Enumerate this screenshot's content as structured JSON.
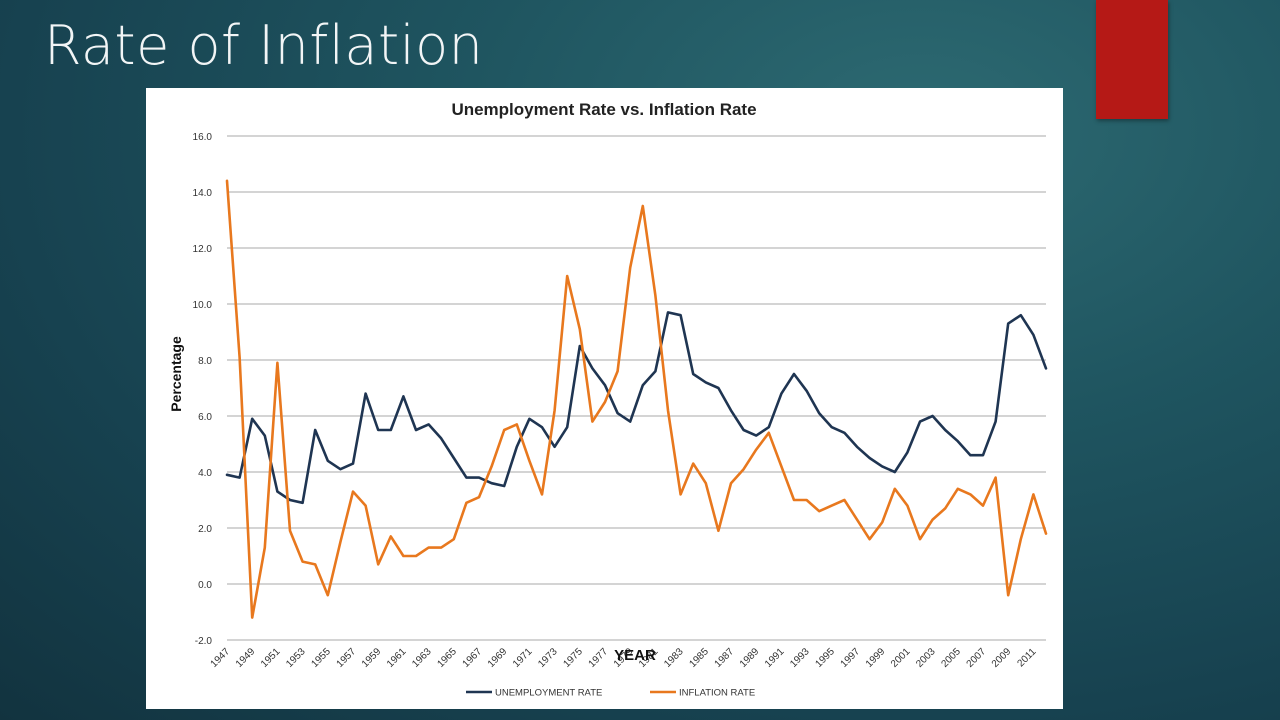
{
  "slide": {
    "title": "Rate of Inflation",
    "accent_color": "#b51916"
  },
  "chart_data": {
    "type": "line",
    "title": "Unemployment Rate vs. Inflation Rate",
    "xlabel": "YEAR",
    "ylabel": "Percentage",
    "ylim": [
      -2,
      16
    ],
    "yticks": [
      "-2.0",
      "0.0",
      "2.0",
      "4.0",
      "6.0",
      "8.0",
      "10.0",
      "12.0",
      "14.0",
      "16.0"
    ],
    "grid": true,
    "legend_position": "bottom",
    "x": [
      1947,
      1948,
      1949,
      1950,
      1951,
      1952,
      1953,
      1954,
      1955,
      1956,
      1957,
      1958,
      1959,
      1960,
      1961,
      1962,
      1963,
      1964,
      1965,
      1966,
      1967,
      1968,
      1969,
      1970,
      1971,
      1972,
      1973,
      1974,
      1975,
      1976,
      1977,
      1978,
      1979,
      1980,
      1981,
      1982,
      1983,
      1984,
      1985,
      1986,
      1987,
      1988,
      1989,
      1990,
      1991,
      1992,
      1993,
      1994,
      1995,
      1996,
      1997,
      1998,
      1999,
      2000,
      2001,
      2002,
      2003,
      2004,
      2005,
      2006,
      2007,
      2008,
      2009,
      2010,
      2011,
      2012
    ],
    "xtick_labels": [
      "1947",
      "1949",
      "1951",
      "1953",
      "1955",
      "1957",
      "1959",
      "1961",
      "1963",
      "1965",
      "1967",
      "1969",
      "1971",
      "1973",
      "1975",
      "1977",
      "1979",
      "1981",
      "1983",
      "1985",
      "1987",
      "1989",
      "1991",
      "1993",
      "1995",
      "1997",
      "1999",
      "2001",
      "2003",
      "2005",
      "2007",
      "2009",
      "2011"
    ],
    "series": [
      {
        "name": "UNEMPLOYMENT RATE",
        "color": "#1f3552",
        "values": [
          3.9,
          3.8,
          5.9,
          5.3,
          3.3,
          3.0,
          2.9,
          5.5,
          4.4,
          4.1,
          4.3,
          6.8,
          5.5,
          5.5,
          6.7,
          5.5,
          5.7,
          5.2,
          4.5,
          3.8,
          3.8,
          3.6,
          3.5,
          4.9,
          5.9,
          5.6,
          4.9,
          5.6,
          8.5,
          7.7,
          7.1,
          6.1,
          5.8,
          7.1,
          7.6,
          9.7,
          9.6,
          7.5,
          7.2,
          7.0,
          6.2,
          5.5,
          5.3,
          5.6,
          6.8,
          7.5,
          6.9,
          6.1,
          5.6,
          5.4,
          4.9,
          4.5,
          4.2,
          4.0,
          4.7,
          5.8,
          6.0,
          5.5,
          5.1,
          4.6,
          4.6,
          5.8,
          9.3,
          9.6,
          8.9,
          7.7
        ]
      },
      {
        "name": "INFLATION RATE",
        "color": "#e8781e",
        "values": [
          14.4,
          8.1,
          -1.2,
          1.3,
          7.9,
          1.9,
          0.8,
          0.7,
          -0.4,
          1.5,
          3.3,
          2.8,
          0.7,
          1.7,
          1.0,
          1.0,
          1.3,
          1.3,
          1.6,
          2.9,
          3.1,
          4.2,
          5.5,
          5.7,
          4.4,
          3.2,
          6.2,
          11.0,
          9.1,
          5.8,
          6.5,
          7.6,
          11.3,
          13.5,
          10.3,
          6.2,
          3.2,
          4.3,
          3.6,
          1.9,
          3.6,
          4.1,
          4.8,
          5.4,
          4.2,
          3.0,
          3.0,
          2.6,
          2.8,
          3.0,
          2.3,
          1.6,
          2.2,
          3.4,
          2.8,
          1.6,
          2.3,
          2.7,
          3.4,
          3.2,
          2.8,
          3.8,
          -0.4,
          1.6,
          3.2,
          1.8
        ]
      }
    ]
  }
}
